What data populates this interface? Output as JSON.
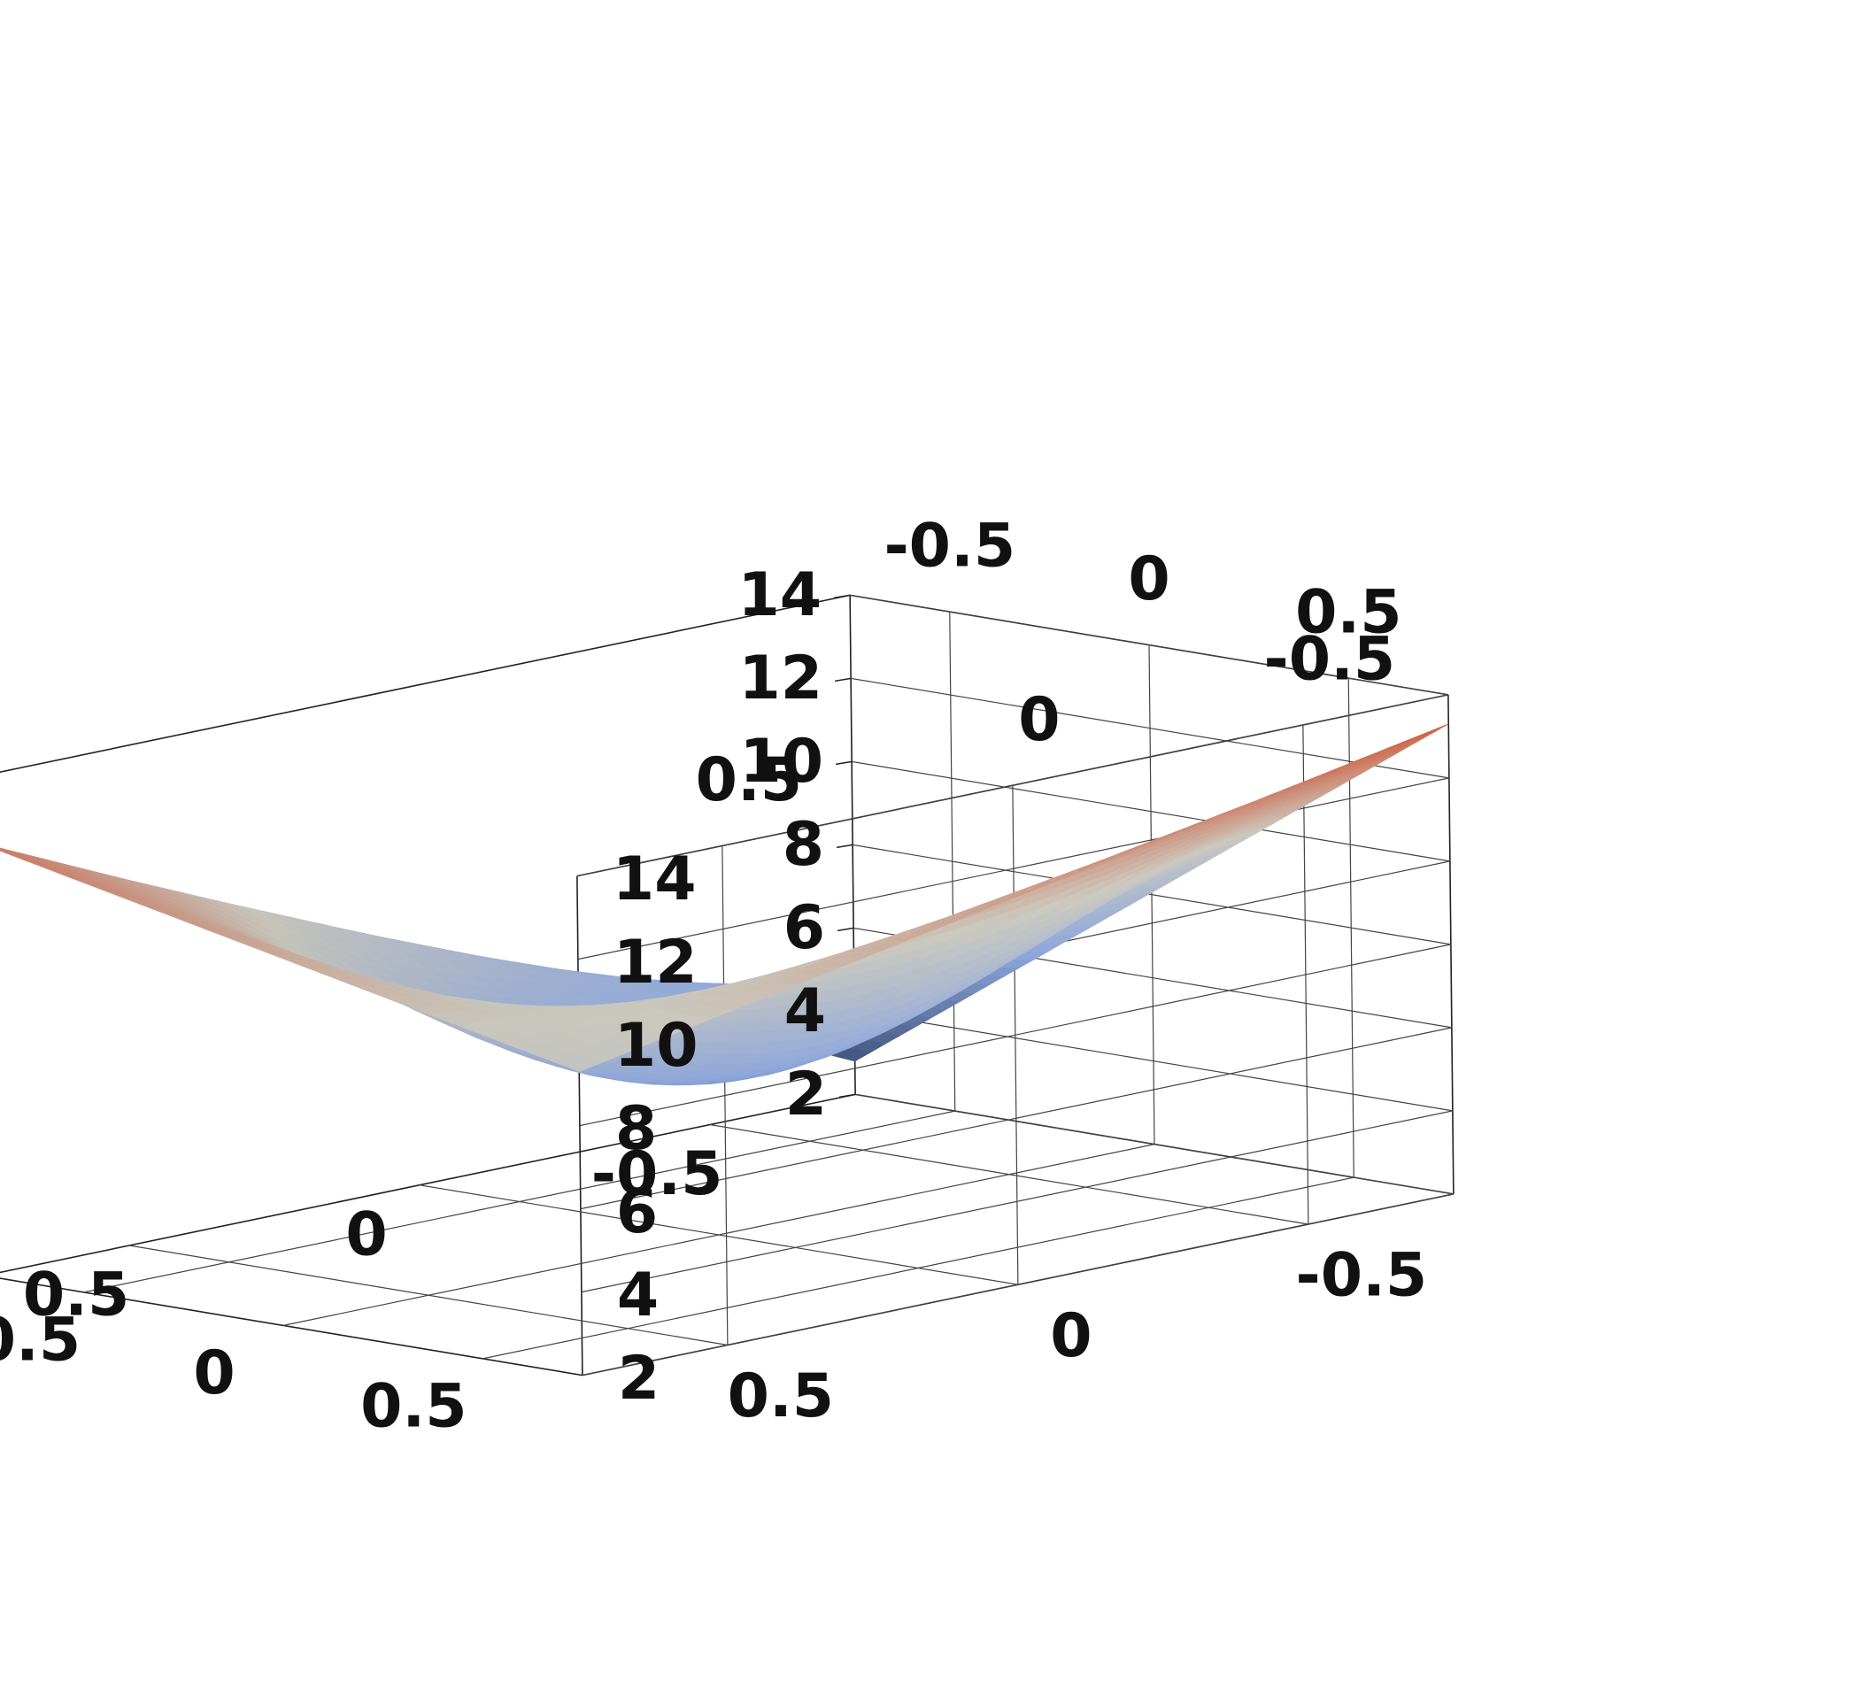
{
  "chart_data": {
    "type": "surface3d",
    "title": "",
    "xlabel": "",
    "ylabel": "",
    "zlabel": "",
    "x_range": [
      -0.75,
      0.75
    ],
    "y_range": [
      -0.75,
      0.75
    ],
    "z_range": [
      2,
      14
    ],
    "x_ticks": [
      {
        "value": -0.5,
        "label": "-0.5"
      },
      {
        "value": 0,
        "label": "0"
      },
      {
        "value": 0.5,
        "label": "0.5"
      }
    ],
    "y_ticks": [
      {
        "value": -0.5,
        "label": "-0.5"
      },
      {
        "value": 0,
        "label": "0"
      },
      {
        "value": 0.5,
        "label": "0.5"
      }
    ],
    "z_ticks": [
      {
        "value": 2,
        "label": "2"
      },
      {
        "value": 4,
        "label": "4"
      },
      {
        "value": 6,
        "label": "6"
      },
      {
        "value": 8,
        "label": "8"
      },
      {
        "value": 10,
        "label": "10"
      },
      {
        "value": 12,
        "label": "12"
      },
      {
        "value": 14,
        "label": "14"
      }
    ],
    "corner_heights": {
      "x_min_y_max": 12.4,
      "x_max_y_min": 13.3,
      "x_max_y_max": 9.3,
      "x_min_y_min": 2.8
    },
    "min_z": 2.6,
    "grid": true,
    "colorscale": [
      "#3d4f7a",
      "#8fa8db",
      "#c9c7bd",
      "#cc5a3c"
    ]
  }
}
